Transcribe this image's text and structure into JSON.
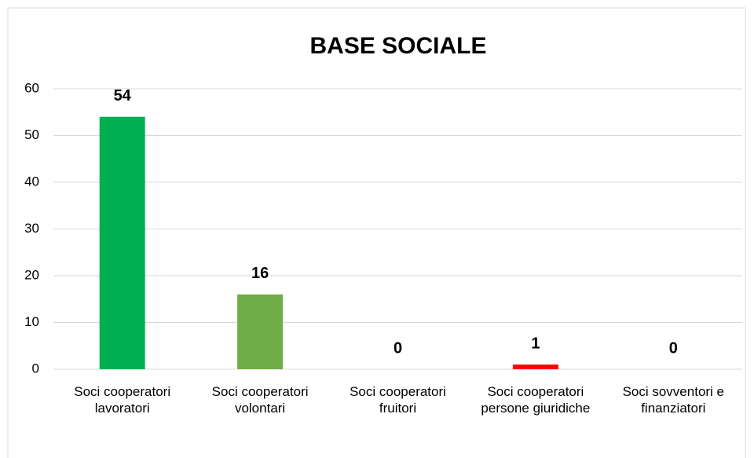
{
  "chart_data": {
    "type": "bar",
    "title": "BASE SOCIALE",
    "categories": [
      "Soci cooperatori lavoratori",
      "Soci cooperatori volontari",
      "Soci cooperatori fruitori",
      "Soci cooperatori persone giuridiche",
      "Soci sovventori e finanziatori"
    ],
    "values": [
      54,
      16,
      0,
      1,
      0
    ],
    "colors": [
      "#00b050",
      "#70ad47",
      "#00b050",
      "#ff0000",
      "#00b050"
    ],
    "ylim": [
      0,
      60
    ],
    "yticks": [
      0,
      10,
      20,
      30,
      40,
      50,
      60
    ],
    "grid": true
  }
}
